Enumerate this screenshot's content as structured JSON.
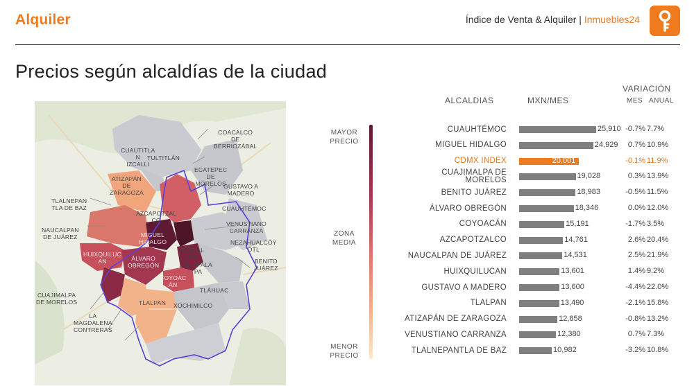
{
  "header": {
    "title": "Alquiler",
    "index_label": "Índice de Venta & Alquiler |",
    "brand": "Inmuebles24"
  },
  "page_title": "Precios según alcaldías de la ciudad",
  "legend": {
    "top": [
      "MAYOR",
      "PRECIO"
    ],
    "middle": [
      "ZONA",
      "MEDIA"
    ],
    "bottom": [
      "MENOR",
      "PRECIO"
    ]
  },
  "columns": {
    "alcaldias": "ALCALDIAS",
    "price": "MXN/MES",
    "variacion": "VARIACIÓN",
    "mes": "MES",
    "anual": "ANUAL"
  },
  "colors": {
    "accent": "#f07a1e",
    "bar": "#7f7f7f",
    "map_high": "#5e1a32",
    "map_mid": "#c7505d",
    "map_low": "#f0a57c",
    "map_gray": "#c4c6cc",
    "outline": "#5b3fd6"
  },
  "map_labels": [
    {
      "id": "coacalco",
      "lines": [
        "COACALCO",
        "DE",
        "BERRIOZÁBAL"
      ]
    },
    {
      "id": "cuautitlan",
      "lines": [
        "CUAUTITLA",
        "N",
        "IZCALLI"
      ]
    },
    {
      "id": "tultitlan",
      "lines": [
        "TULTITLÁN"
      ]
    },
    {
      "id": "ecatepec",
      "lines": [
        "ECATEPEC",
        "DE",
        "MORELOS"
      ]
    },
    {
      "id": "atizapan",
      "lines": [
        "ATIZAPÁN",
        "DE",
        "ZARAGOZA"
      ]
    },
    {
      "id": "gustavo",
      "lines": [
        "GUSTAVO A",
        "MADERO"
      ]
    },
    {
      "id": "tlalnepantla",
      "lines": [
        "TLALNEPAN",
        "TLA DE BAZ"
      ]
    },
    {
      "id": "cuauhtemoc",
      "lines": [
        "CUAUHTÉMOC"
      ]
    },
    {
      "id": "azcapotzalco",
      "lines": [
        "AZCAPOTZAL",
        "CO"
      ]
    },
    {
      "id": "venustiano",
      "lines": [
        "VENUSTIANO",
        "CARRANZA"
      ]
    },
    {
      "id": "naucalpan",
      "lines": [
        "NAUCALPAN",
        "DE JUÁREZ"
      ]
    },
    {
      "id": "miguel",
      "lines": [
        "MIGUEL",
        "HIDALGO"
      ]
    },
    {
      "id": "nezahualcoyotl",
      "lines": [
        "NEZAHUALCÓY",
        "OTL"
      ]
    },
    {
      "id": "iztacalco",
      "lines": [
        "IZTACAL",
        "CO"
      ]
    },
    {
      "id": "huixquilucan",
      "lines": [
        "HUIXQUILUC",
        "AN"
      ]
    },
    {
      "id": "alvaro",
      "lines": [
        "ÁLVARO",
        "OBREGÓN"
      ]
    },
    {
      "id": "benito",
      "lines": [
        "BENITO",
        "JUÁREZ"
      ]
    },
    {
      "id": "iztapalapa",
      "lines": [
        "IZTAPALA",
        "PA"
      ]
    },
    {
      "id": "coyoacan",
      "lines": [
        "COYOAC",
        "ÁN"
      ]
    },
    {
      "id": "tlahuac",
      "lines": [
        "TLÁHUAC"
      ]
    },
    {
      "id": "cuajimalpa",
      "lines": [
        "CUAJIMALPA",
        "DE MORELOS"
      ]
    },
    {
      "id": "tlalpan",
      "lines": [
        "TLALPAN"
      ]
    },
    {
      "id": "xochimilco",
      "lines": [
        "XOCHIMILCO"
      ]
    },
    {
      "id": "magdalena",
      "lines": [
        "LA",
        "MAGDALENA",
        "CONTRERAS"
      ]
    }
  ],
  "chart_data": {
    "type": "bar",
    "orientation": "horizontal",
    "categories": [
      "CUAUHTÉMOC",
      "MIGUEL HIDALGO",
      "CDMX INDEX",
      "CUAJIMALPA DE MORELOS",
      "BENITO JUÁREZ",
      "ÁLVARO OBREGÓN",
      "COYOACÁN",
      "AZCAPOTZALCO",
      "NAUCALPAN DE JUÁREZ",
      "HUIXQUILUCAN",
      "GUSTAVO A MADERO",
      "TLALPAN",
      "ATIZAPÁN DE ZARAGOZA",
      "VENUSTIANO CARRANZA",
      "TLALNEPANTLA DE BAZ"
    ],
    "label_lines": [
      [
        "CUAUHTÉMOC"
      ],
      [
        "MIGUEL HIDALGO"
      ],
      [
        "CDMX INDEX"
      ],
      [
        "CUAJIMALPA DE",
        "MORELOS"
      ],
      [
        "BENITO JUÁREZ"
      ],
      [
        "ÁLVARO OBREGÓN"
      ],
      [
        "COYOACÁN"
      ],
      [
        "AZCAPOTZALCO"
      ],
      [
        "NAUCALPAN DE JUÁREZ"
      ],
      [
        "HUIXQUILUCAN"
      ],
      [
        "GUSTAVO A MADERO"
      ],
      [
        "TLALPAN"
      ],
      [
        "ATIZAPÁN DE ZARAGOZA"
      ],
      [
        "VENUSTIANO CARRANZA"
      ],
      [
        "TLALNEPANTLA DE BAZ"
      ]
    ],
    "values": [
      25910,
      24929,
      20001,
      19028,
      18983,
      18346,
      15191,
      14761,
      14531,
      13601,
      13600,
      13490,
      12858,
      12380,
      10982
    ],
    "value_labels": [
      "25,910",
      "24,929",
      "20,001",
      "19,028",
      "18,983",
      "18,346",
      "15,191",
      "14,761",
      "14,531",
      "13,601",
      "13,600",
      "13,490",
      "12,858",
      "12,380",
      "10,982"
    ],
    "var_mes": [
      "-0.7%",
      "0.7%",
      "-0.1%",
      "0.3%",
      "-0.5%",
      "0.0%",
      "-1.7%",
      "2.6%",
      "2.5%",
      "1.4%",
      "-4.4%",
      "-2.1%",
      "-0.8%",
      "0.7%",
      "-3.2%"
    ],
    "var_anual": [
      "7.7%",
      "10.9%",
      "11.9%",
      "13.9%",
      "11.5%",
      "12.0%",
      "3.5%",
      "20.4%",
      "21.9%",
      "9.2%",
      "22.0%",
      "15.8%",
      "13.2%",
      "7.3%",
      "10.8%"
    ],
    "highlight_index": 2,
    "xlim": [
      0,
      25910
    ]
  }
}
